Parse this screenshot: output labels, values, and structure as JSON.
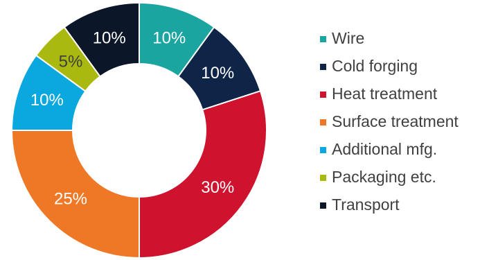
{
  "chart_data": {
    "type": "pie",
    "donut": true,
    "categories": [
      "Wire",
      "Cold forging",
      "Heat treatment",
      "Surface treatment",
      "Additional mfg.",
      "Packaging etc.",
      "Transport"
    ],
    "values": [
      10,
      10,
      30,
      25,
      10,
      5,
      10
    ],
    "labels": [
      "10%",
      "10%",
      "30%",
      "25%",
      "10%",
      "5%",
      "10%"
    ],
    "colors": [
      "#1aa5a0",
      "#0e2547",
      "#cf132e",
      "#ef7826",
      "#0aa8df",
      "#a9b90f",
      "#0b1628"
    ],
    "label_colors": [
      "#ffffff",
      "#ffffff",
      "#ffffff",
      "#ffffff",
      "#ffffff",
      "#404040",
      "#ffffff"
    ],
    "legend_position": "right"
  }
}
